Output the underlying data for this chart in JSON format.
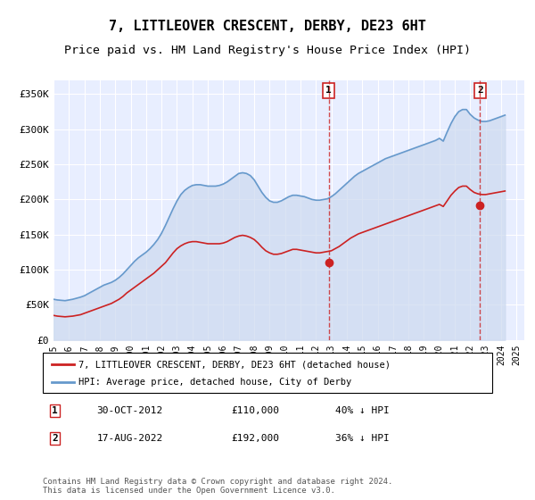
{
  "title": "7, LITTLEOVER CRESCENT, DERBY, DE23 6HT",
  "subtitle": "Price paid vs. HM Land Registry's House Price Index (HPI)",
  "title_fontsize": 11,
  "subtitle_fontsize": 9.5,
  "xlabel": "",
  "ylabel": "",
  "ylim": [
    0,
    370000
  ],
  "xlim_start": 1995.0,
  "xlim_end": 2025.5,
  "yticks": [
    0,
    50000,
    100000,
    150000,
    200000,
    250000,
    300000,
    350000
  ],
  "ytick_labels": [
    "£0",
    "£50K",
    "£100K",
    "£150K",
    "£200K",
    "£250K",
    "£300K",
    "£350K"
  ],
  "bg_color": "#f0f4ff",
  "plot_bg_color": "#e8eeff",
  "grid_color": "#ffffff",
  "hpi_color": "#6699cc",
  "hpi_fill_color": "#ccd9ee",
  "price_color": "#cc2222",
  "transaction1_date": "30-OCT-2012",
  "transaction1_price": 110000,
  "transaction1_pct": "40%",
  "transaction1_year": 2012.83,
  "transaction2_date": "17-AUG-2022",
  "transaction2_price": 192000,
  "transaction2_pct": "36%",
  "transaction2_year": 2022.63,
  "legend_label_red": "7, LITTLEOVER CRESCENT, DERBY, DE23 6HT (detached house)",
  "legend_label_blue": "HPI: Average price, detached house, City of Derby",
  "footer": "Contains HM Land Registry data © Crown copyright and database right 2024.\nThis data is licensed under the Open Government Licence v3.0.",
  "hpi_years": [
    1995.0,
    1995.25,
    1995.5,
    1995.75,
    1996.0,
    1996.25,
    1996.5,
    1996.75,
    1997.0,
    1997.25,
    1997.5,
    1997.75,
    1998.0,
    1998.25,
    1998.5,
    1998.75,
    1999.0,
    1999.25,
    1999.5,
    1999.75,
    2000.0,
    2000.25,
    2000.5,
    2000.75,
    2001.0,
    2001.25,
    2001.5,
    2001.75,
    2002.0,
    2002.25,
    2002.5,
    2002.75,
    2003.0,
    2003.25,
    2003.5,
    2003.75,
    2004.0,
    2004.25,
    2004.5,
    2004.75,
    2005.0,
    2005.25,
    2005.5,
    2005.75,
    2006.0,
    2006.25,
    2006.5,
    2006.75,
    2007.0,
    2007.25,
    2007.5,
    2007.75,
    2008.0,
    2008.25,
    2008.5,
    2008.75,
    2009.0,
    2009.25,
    2009.5,
    2009.75,
    2010.0,
    2010.25,
    2010.5,
    2010.75,
    2011.0,
    2011.25,
    2011.5,
    2011.75,
    2012.0,
    2012.25,
    2012.5,
    2012.75,
    2013.0,
    2013.25,
    2013.5,
    2013.75,
    2014.0,
    2014.25,
    2014.5,
    2014.75,
    2015.0,
    2015.25,
    2015.5,
    2015.75,
    2016.0,
    2016.25,
    2016.5,
    2016.75,
    2017.0,
    2017.25,
    2017.5,
    2017.75,
    2018.0,
    2018.25,
    2018.5,
    2018.75,
    2019.0,
    2019.25,
    2019.5,
    2019.75,
    2020.0,
    2020.25,
    2020.5,
    2020.75,
    2021.0,
    2021.25,
    2021.5,
    2021.75,
    2022.0,
    2022.25,
    2022.5,
    2022.75,
    2023.0,
    2023.25,
    2023.5,
    2023.75,
    2024.0,
    2024.25
  ],
  "hpi_values": [
    58000,
    57000,
    56500,
    56000,
    57000,
    58000,
    59500,
    61000,
    63000,
    66000,
    69000,
    72000,
    75000,
    78000,
    80000,
    82000,
    85000,
    89000,
    94000,
    100000,
    106000,
    112000,
    117000,
    121000,
    125000,
    130000,
    136000,
    143000,
    152000,
    163000,
    175000,
    187000,
    198000,
    207000,
    213000,
    217000,
    220000,
    221000,
    221000,
    220000,
    219000,
    219000,
    219000,
    220000,
    222000,
    225000,
    229000,
    233000,
    237000,
    238000,
    237000,
    234000,
    228000,
    219000,
    210000,
    203000,
    198000,
    196000,
    196000,
    198000,
    201000,
    204000,
    206000,
    206000,
    205000,
    204000,
    202000,
    200000,
    199000,
    199000,
    200000,
    201000,
    204000,
    208000,
    213000,
    218000,
    223000,
    228000,
    233000,
    237000,
    240000,
    243000,
    246000,
    249000,
    252000,
    255000,
    258000,
    260000,
    262000,
    264000,
    266000,
    268000,
    270000,
    272000,
    274000,
    276000,
    278000,
    280000,
    282000,
    284000,
    287000,
    283000,
    296000,
    308000,
    318000,
    325000,
    328000,
    328000,
    321000,
    316000,
    313000,
    311000,
    311000,
    312000,
    314000,
    316000,
    318000,
    320000
  ],
  "price_years": [
    1995.0,
    1995.25,
    1995.5,
    1995.75,
    1996.0,
    1996.25,
    1996.5,
    1996.75,
    1997.0,
    1997.25,
    1997.5,
    1997.75,
    1998.0,
    1998.25,
    1998.5,
    1998.75,
    1999.0,
    1999.25,
    1999.5,
    1999.75,
    2000.0,
    2000.25,
    2000.5,
    2000.75,
    2001.0,
    2001.25,
    2001.5,
    2001.75,
    2002.0,
    2002.25,
    2002.5,
    2002.75,
    2003.0,
    2003.25,
    2003.5,
    2003.75,
    2004.0,
    2004.25,
    2004.5,
    2004.75,
    2005.0,
    2005.25,
    2005.5,
    2005.75,
    2006.0,
    2006.25,
    2006.5,
    2006.75,
    2007.0,
    2007.25,
    2007.5,
    2007.75,
    2008.0,
    2008.25,
    2008.5,
    2008.75,
    2009.0,
    2009.25,
    2009.5,
    2009.75,
    2010.0,
    2010.25,
    2010.5,
    2010.75,
    2011.0,
    2011.25,
    2011.5,
    2011.75,
    2012.0,
    2012.25,
    2012.5,
    2012.75,
    2013.0,
    2013.25,
    2013.5,
    2013.75,
    2014.0,
    2014.25,
    2014.5,
    2014.75,
    2015.0,
    2015.25,
    2015.5,
    2015.75,
    2016.0,
    2016.25,
    2016.5,
    2016.75,
    2017.0,
    2017.25,
    2017.5,
    2017.75,
    2018.0,
    2018.25,
    2018.5,
    2018.75,
    2019.0,
    2019.25,
    2019.5,
    2019.75,
    2020.0,
    2020.25,
    2020.5,
    2020.75,
    2021.0,
    2021.25,
    2021.5,
    2021.75,
    2022.0,
    2022.25,
    2022.5,
    2022.75,
    2023.0,
    2023.25,
    2023.5,
    2023.75,
    2024.0,
    2024.25
  ],
  "price_values": [
    35000,
    34000,
    33500,
    33000,
    33500,
    34000,
    35000,
    36000,
    38000,
    40000,
    42000,
    44000,
    46000,
    48000,
    50000,
    52000,
    55000,
    58000,
    62000,
    67000,
    71000,
    75000,
    79000,
    83000,
    87000,
    91000,
    95000,
    100000,
    105000,
    110000,
    117000,
    124000,
    130000,
    134000,
    137000,
    139000,
    140000,
    140000,
    139000,
    138000,
    137000,
    137000,
    137000,
    137000,
    138000,
    140000,
    143000,
    146000,
    148000,
    149000,
    148000,
    146000,
    143000,
    138000,
    132000,
    127000,
    124000,
    122000,
    122000,
    123000,
    125000,
    127000,
    129000,
    129000,
    128000,
    127000,
    126000,
    125000,
    124000,
    124000,
    125000,
    126000,
    127000,
    130000,
    133000,
    137000,
    141000,
    145000,
    148000,
    151000,
    153000,
    155000,
    157000,
    159000,
    161000,
    163000,
    165000,
    167000,
    169000,
    171000,
    173000,
    175000,
    177000,
    179000,
    181000,
    183000,
    185000,
    187000,
    189000,
    191000,
    193000,
    190000,
    198000,
    206000,
    212000,
    217000,
    219000,
    219000,
    214000,
    210000,
    208000,
    207000,
    207000,
    208000,
    209000,
    210000,
    211000,
    212000
  ]
}
